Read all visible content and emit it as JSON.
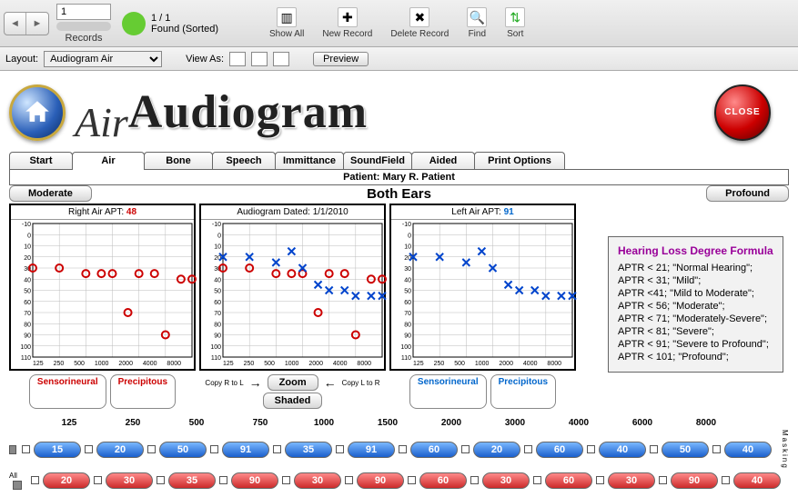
{
  "toolbar1": {
    "record_value": "1",
    "records_label": "Records",
    "found_count": "1 / 1",
    "found_label": "Found (Sorted)",
    "buttons": {
      "showall": "Show All",
      "newrecord": "New Record",
      "deleterecord": "Delete Record",
      "find": "Find",
      "sort": "Sort"
    }
  },
  "toolbar2": {
    "layout_label": "Layout:",
    "layout_value": "Audiogram Air",
    "viewas_label": "View As:",
    "preview": "Preview"
  },
  "header": {
    "script": "Air",
    "title": "Audiogram",
    "close": "CLOSE"
  },
  "tabs": [
    "Start",
    "Air",
    "Bone",
    "Speech",
    "Immittance",
    "SoundField",
    "Aided",
    "Print Options"
  ],
  "active_tab": 1,
  "patient_label": "Patient: Mary R. Patient",
  "severity": {
    "left": "Moderate",
    "right": "Profound"
  },
  "both_ears": "Both Ears",
  "charts": {
    "y_ticks": [
      -10,
      0,
      10,
      20,
      30,
      40,
      50,
      60,
      70,
      80,
      90,
      100,
      110
    ],
    "x_ticks": [
      125,
      250,
      500,
      1000,
      2000,
      4000,
      8000
    ],
    "x_labels_display": [
      "125",
      "250",
      "500",
      "1000",
      "2000",
      "4000",
      "8000"
    ],
    "right": {
      "title_prefix": "Right Air APT: ",
      "apt": "48",
      "color": "#cc0000",
      "marker": "O",
      "points": [
        [
          125,
          30
        ],
        [
          250,
          30
        ],
        [
          500,
          35
        ],
        [
          750,
          35
        ],
        [
          1000,
          35
        ],
        [
          1500,
          70
        ],
        [
          2000,
          35
        ],
        [
          3000,
          35
        ],
        [
          4000,
          90
        ],
        [
          6000,
          40
        ],
        [
          8000,
          40
        ]
      ]
    },
    "middle": {
      "title_prefix": "Audiogram Dated: ",
      "date": "1/1/2010",
      "right_points": [
        [
          125,
          30
        ],
        [
          250,
          30
        ],
        [
          500,
          35
        ],
        [
          750,
          35
        ],
        [
          1000,
          35
        ],
        [
          1500,
          70
        ],
        [
          2000,
          35
        ],
        [
          3000,
          35
        ],
        [
          4000,
          90
        ],
        [
          6000,
          40
        ],
        [
          8000,
          40
        ]
      ],
      "left_points": [
        [
          125,
          20
        ],
        [
          250,
          20
        ],
        [
          500,
          25
        ],
        [
          750,
          15
        ],
        [
          1000,
          30
        ],
        [
          1500,
          45
        ],
        [
          2000,
          50
        ],
        [
          3000,
          50
        ],
        [
          4000,
          55
        ],
        [
          6000,
          55
        ],
        [
          8000,
          55
        ]
      ]
    },
    "left": {
      "title_prefix": "Left Air APT: ",
      "apt": "91",
      "color": "#0044cc",
      "marker": "X",
      "points": [
        [
          125,
          20
        ],
        [
          250,
          20
        ],
        [
          500,
          25
        ],
        [
          750,
          15
        ],
        [
          1000,
          30
        ],
        [
          1500,
          45
        ],
        [
          2000,
          50
        ],
        [
          3000,
          50
        ],
        [
          4000,
          55
        ],
        [
          6000,
          55
        ],
        [
          8000,
          55
        ]
      ]
    }
  },
  "type_buttons": {
    "sensorineural": "Sensorineural",
    "precipitous": "Precipitous"
  },
  "mid_ctrl": {
    "copy_rtl": "Copy R to L",
    "copy_ltr": "Copy L to R",
    "zoom": "Zoom",
    "shaded": "Shaded"
  },
  "formula": {
    "title": "Hearing Loss Degree Formula",
    "lines": [
      "APTR < 21; \"Normal Hearing\";",
      "APTR < 31; \"Mild\";",
      "APTR <41; \"Mild to Moderate\";",
      "APTR < 56; \"Moderate\";",
      "APTR < 71; \"Moderately-Severe\";",
      "APTR < 81; \"Severe\";",
      "APTR < 91; \"Severe to Profound\";",
      "APTR < 101; \"Profound\";"
    ]
  },
  "pills": {
    "freqs": [
      "125",
      "250",
      "500",
      "750",
      "1000",
      "1500",
      "2000",
      "3000",
      "4000",
      "6000",
      "8000"
    ],
    "blue_row": [
      "15",
      "20",
      "50",
      "91",
      "35",
      "91",
      "60",
      "20",
      "60",
      "40",
      "50",
      "40"
    ],
    "red_row": [
      "20",
      "30",
      "35",
      "90",
      "30",
      "90",
      "60",
      "30",
      "60",
      "30",
      "90",
      "40"
    ],
    "all_label": "All",
    "masking": "Masking"
  }
}
